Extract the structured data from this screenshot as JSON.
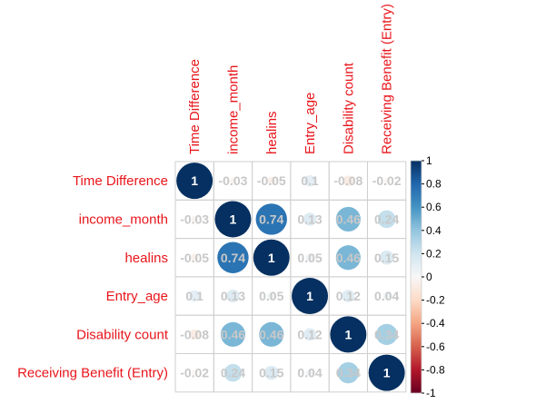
{
  "chart_data": {
    "type": "heatmap",
    "variables": [
      "Time Difference",
      "income_month",
      "healins",
      "Entry_age",
      "Disability count",
      "Receiving Benefit (Entry)"
    ],
    "matrix": [
      [
        1,
        -0.03,
        -0.05,
        0.1,
        -0.08,
        -0.02
      ],
      [
        -0.03,
        1,
        0.74,
        0.13,
        0.46,
        0.24
      ],
      [
        -0.05,
        0.74,
        1,
        0.05,
        0.46,
        0.15
      ],
      [
        0.1,
        0.13,
        0.05,
        1,
        0.12,
        0.04
      ],
      [
        -0.08,
        0.46,
        0.46,
        0.12,
        1,
        0.34
      ],
      [
        -0.02,
        0.24,
        0.15,
        0.04,
        0.34,
        1
      ]
    ],
    "value_labels": [
      [
        "1",
        "-0.03",
        "-0.05",
        "0.1",
        "-0.08",
        "-0.02"
      ],
      [
        "-0.03",
        "1",
        "0.74",
        "0.13",
        "0.46",
        "0.24"
      ],
      [
        "-0.05",
        "0.74",
        "1",
        "0.05",
        "0.46",
        "0.15"
      ],
      [
        "0.1",
        "0.13",
        "0.05",
        "1",
        "0.12",
        "0.04"
      ],
      [
        "-0.08",
        "0.46",
        "0.46",
        "0.12",
        "1",
        "0.34"
      ],
      [
        "-0.02",
        "0.24",
        "0.15",
        "0.04",
        "0.34",
        "1"
      ]
    ],
    "colorbar": {
      "range": [
        -1,
        1
      ],
      "tick_labels": [
        "1",
        "0.8",
        "0.6",
        "0.4",
        "0.2",
        "0",
        "-0.2",
        "-0.4",
        "-0.6",
        "-0.8",
        "-1"
      ],
      "colors": {
        "negative": "#67001f",
        "neutral": "#f7f7f7",
        "positive": "#053061"
      }
    },
    "grid": true,
    "label_color": "#e8151b"
  }
}
